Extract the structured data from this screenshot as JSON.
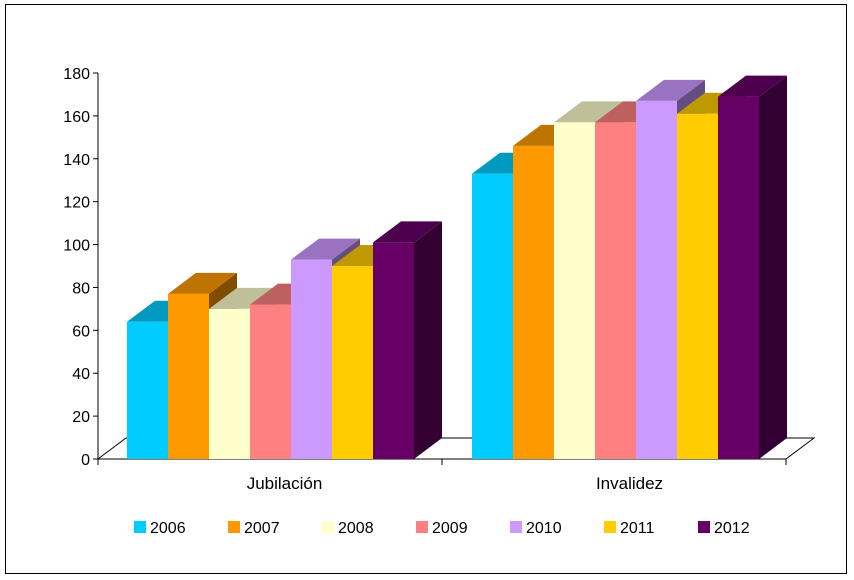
{
  "chart_data": {
    "type": "bar",
    "categories": [
      "Jubilación",
      "Invalidez"
    ],
    "series": [
      {
        "name": "2006",
        "color": "#00CCFF",
        "values": [
          64,
          133
        ]
      },
      {
        "name": "2007",
        "color": "#FF9900",
        "values": [
          77,
          146
        ]
      },
      {
        "name": "2008",
        "color": "#FFFFCC",
        "values": [
          70,
          157
        ]
      },
      {
        "name": "2009",
        "color": "#FF8080",
        "values": [
          72,
          157
        ]
      },
      {
        "name": "2010",
        "color": "#CC99FF",
        "values": [
          93,
          167
        ]
      },
      {
        "name": "2011",
        "color": "#FFCC00",
        "values": [
          90,
          161
        ]
      },
      {
        "name": "2012",
        "color": "#660066",
        "values": [
          101,
          169
        ]
      }
    ],
    "ylim": [
      0,
      180
    ],
    "yticks": [
      0,
      20,
      40,
      60,
      80,
      100,
      120,
      140,
      160,
      180
    ],
    "legend_position": "bottom",
    "grid": false,
    "style": "3d-clustered"
  }
}
